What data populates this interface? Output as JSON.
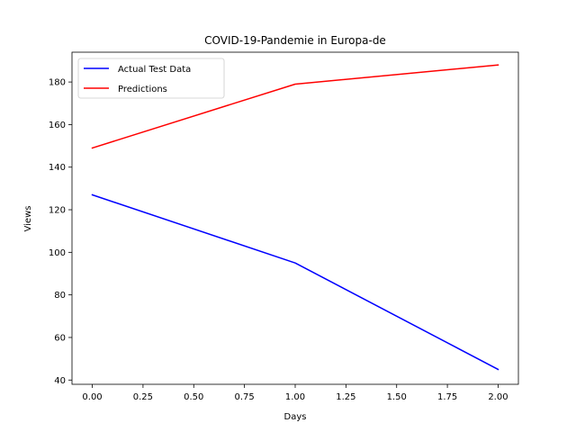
{
  "chart_data": {
    "type": "line",
    "title": "COVID-19-Pandemie in Europa-de",
    "xlabel": "Days",
    "ylabel": "Views",
    "x": [
      0,
      1,
      2
    ],
    "series": [
      {
        "name": "Actual Test Data",
        "values": [
          127,
          95,
          45
        ],
        "color": "#0000ff"
      },
      {
        "name": "Predictions",
        "values": [
          149,
          179,
          188
        ],
        "color": "#ff0000"
      }
    ],
    "xlim": [
      -0.1,
      2.1
    ],
    "ylim": [
      38,
      194
    ],
    "xticks": [
      0,
      0.25,
      0.5,
      0.75,
      1.0,
      1.25,
      1.5,
      1.75,
      2.0
    ],
    "xtick_labels": [
      "0.00",
      "0.25",
      "0.50",
      "0.75",
      "1.00",
      "1.25",
      "1.50",
      "1.75",
      "2.00"
    ],
    "yticks": [
      40,
      60,
      80,
      100,
      120,
      140,
      160,
      180
    ],
    "ytick_labels": [
      "40",
      "60",
      "80",
      "100",
      "120",
      "140",
      "160",
      "180"
    ],
    "grid": false,
    "legend_position": "top-left"
  }
}
